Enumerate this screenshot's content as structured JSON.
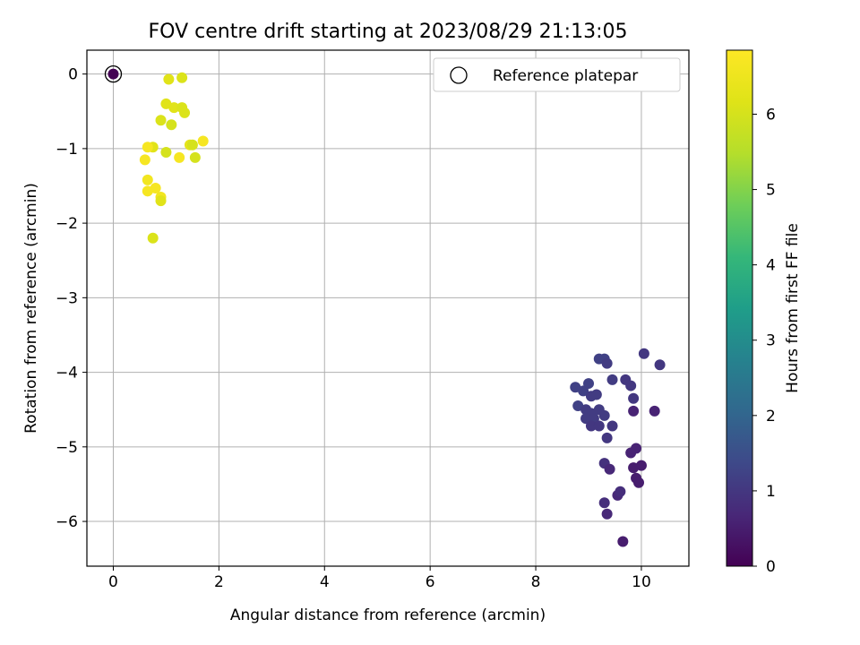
{
  "chart_data": {
    "type": "scatter",
    "title": "FOV centre drift starting at 2023/08/29 21:13:05",
    "xlabel": "Angular distance from reference (arcmin)",
    "ylabel": "Rotation from reference (arcmin)",
    "xlim": [
      -0.5,
      10.9
    ],
    "ylim": [
      -6.6,
      0.32
    ],
    "xticks": [
      0,
      2,
      4,
      6,
      8,
      10
    ],
    "xtick_labels": [
      "0",
      "2",
      "4",
      "6",
      "8",
      "10"
    ],
    "yticks": [
      0,
      -1,
      -2,
      -3,
      -4,
      -5,
      -6
    ],
    "ytick_labels": [
      "0",
      "−1",
      "−2",
      "−3",
      "−4",
      "−5",
      "−6"
    ],
    "grid": true,
    "legend": {
      "placement": "upper-right",
      "entries": [
        "Reference platepar"
      ]
    },
    "colorbar": {
      "label": "Hours from first FF file",
      "range": [
        0,
        6.85
      ],
      "ticks": [
        0,
        1,
        2,
        3,
        4,
        5,
        6
      ],
      "tick_labels": [
        "0",
        "1",
        "2",
        "3",
        "4",
        "5",
        "6"
      ],
      "colormap": "viridis"
    },
    "reference_point": {
      "x": 0,
      "y": 0,
      "c": 0
    },
    "points": [
      {
        "x": 9.2,
        "y": -3.82,
        "c": 1.2
      },
      {
        "x": 9.3,
        "y": -3.82,
        "c": 1.2
      },
      {
        "x": 9.35,
        "y": -3.88,
        "c": 1.1
      },
      {
        "x": 10.05,
        "y": -3.75,
        "c": 1.0
      },
      {
        "x": 10.35,
        "y": -3.9,
        "c": 1.0
      },
      {
        "x": 9.45,
        "y": -4.1,
        "c": 1.1
      },
      {
        "x": 9.7,
        "y": -4.1,
        "c": 1.0
      },
      {
        "x": 9.8,
        "y": -4.18,
        "c": 1.0
      },
      {
        "x": 9.85,
        "y": -4.35,
        "c": 1.0
      },
      {
        "x": 8.75,
        "y": -4.2,
        "c": 1.2
      },
      {
        "x": 8.9,
        "y": -4.25,
        "c": 1.2
      },
      {
        "x": 9.0,
        "y": -4.15,
        "c": 1.2
      },
      {
        "x": 9.05,
        "y": -4.32,
        "c": 1.1
      },
      {
        "x": 9.15,
        "y": -4.3,
        "c": 1.1
      },
      {
        "x": 8.8,
        "y": -4.45,
        "c": 1.2
      },
      {
        "x": 8.95,
        "y": -4.5,
        "c": 1.1
      },
      {
        "x": 9.05,
        "y": -4.55,
        "c": 1.1
      },
      {
        "x": 9.2,
        "y": -4.5,
        "c": 1.1
      },
      {
        "x": 8.95,
        "y": -4.62,
        "c": 1.1
      },
      {
        "x": 9.1,
        "y": -4.62,
        "c": 1.1
      },
      {
        "x": 9.3,
        "y": -4.58,
        "c": 1.1
      },
      {
        "x": 9.05,
        "y": -4.72,
        "c": 1.0
      },
      {
        "x": 9.2,
        "y": -4.72,
        "c": 1.0
      },
      {
        "x": 9.45,
        "y": -4.72,
        "c": 1.0
      },
      {
        "x": 9.35,
        "y": -4.88,
        "c": 1.0
      },
      {
        "x": 9.85,
        "y": -4.52,
        "c": 0.6
      },
      {
        "x": 10.25,
        "y": -4.52,
        "c": 0.6
      },
      {
        "x": 9.9,
        "y": -5.02,
        "c": 0.6
      },
      {
        "x": 9.8,
        "y": -5.08,
        "c": 0.6
      },
      {
        "x": 9.3,
        "y": -5.22,
        "c": 0.9
      },
      {
        "x": 9.4,
        "y": -5.3,
        "c": 0.7
      },
      {
        "x": 9.85,
        "y": -5.28,
        "c": 0.5
      },
      {
        "x": 10.0,
        "y": -5.25,
        "c": 0.5
      },
      {
        "x": 9.9,
        "y": -5.42,
        "c": 0.5
      },
      {
        "x": 9.95,
        "y": -5.48,
        "c": 0.5
      },
      {
        "x": 9.55,
        "y": -5.65,
        "c": 0.7
      },
      {
        "x": 9.6,
        "y": -5.6,
        "c": 0.8
      },
      {
        "x": 9.3,
        "y": -5.75,
        "c": 0.8
      },
      {
        "x": 9.35,
        "y": -5.9,
        "c": 0.7
      },
      {
        "x": 9.65,
        "y": -6.27,
        "c": 0.5
      },
      {
        "x": 1.05,
        "y": -0.07,
        "c": 6.2
      },
      {
        "x": 1.3,
        "y": -0.05,
        "c": 6.1
      },
      {
        "x": 1.0,
        "y": -0.4,
        "c": 6.2
      },
      {
        "x": 1.15,
        "y": -0.45,
        "c": 6.2
      },
      {
        "x": 1.3,
        "y": -0.45,
        "c": 6.1
      },
      {
        "x": 1.35,
        "y": -0.52,
        "c": 6.1
      },
      {
        "x": 0.9,
        "y": -0.62,
        "c": 6.1
      },
      {
        "x": 1.1,
        "y": -0.68,
        "c": 6.0
      },
      {
        "x": 0.75,
        "y": -0.98,
        "c": 6.2
      },
      {
        "x": 1.0,
        "y": -1.05,
        "c": 6.0
      },
      {
        "x": 1.45,
        "y": -0.95,
        "c": 6.3
      },
      {
        "x": 1.5,
        "y": -0.95,
        "c": 6.0
      },
      {
        "x": 1.55,
        "y": -1.12,
        "c": 6.0
      },
      {
        "x": 1.7,
        "y": -0.9,
        "c": 6.7
      },
      {
        "x": 1.25,
        "y": -1.12,
        "c": 6.7
      },
      {
        "x": 0.65,
        "y": -0.98,
        "c": 6.7
      },
      {
        "x": 0.6,
        "y": -1.15,
        "c": 6.7
      },
      {
        "x": 0.65,
        "y": -1.42,
        "c": 6.6
      },
      {
        "x": 0.65,
        "y": -1.57,
        "c": 6.7
      },
      {
        "x": 0.8,
        "y": -1.53,
        "c": 6.7
      },
      {
        "x": 0.9,
        "y": -1.65,
        "c": 6.6
      },
      {
        "x": 0.9,
        "y": -1.7,
        "c": 6.2
      },
      {
        "x": 0.75,
        "y": -2.2,
        "c": 6.1
      }
    ]
  }
}
